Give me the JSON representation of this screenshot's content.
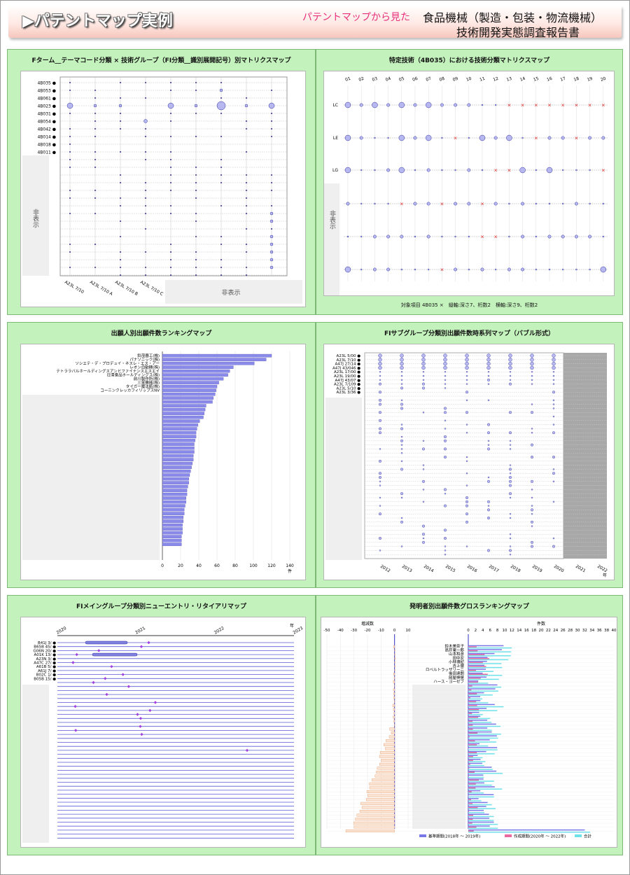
{
  "header": {
    "title": "パテントマップ実例",
    "subtitle": "パテントマップから見た",
    "report_line1": "食品機械（製造・包装・物流機械）",
    "report_line2": "技術開発実態調査報告書"
  },
  "colors": {
    "panel_bg": "#c4f2bd",
    "bubble": "#b8b8f0",
    "bubble_stroke": "#3030a0",
    "red_x": "#e02020",
    "bar": "#8a8aea",
    "pink": "#e86aa0",
    "cyan": "#6ee2e8",
    "orange": "#e8a070"
  },
  "panels": {
    "p1": {
      "title": "Fターム__テーマコード分類 × 技術グループ（FI分類__識別展開記号）別マトリクスマップ",
      "rows": [
        "4B035",
        "4B053",
        "4B061",
        "4B023",
        "4B031",
        "4B054",
        "4B042",
        "4B014",
        "4B018",
        "4B011"
      ],
      "hidden_label": "非表示",
      "xlabels": [
        "A23L 7/10",
        "A23L 7/10 A",
        "A23L 7/10 B",
        "A23L 7/10 C"
      ]
    },
    "p2": {
      "title": "特定技術（4B035）における技術分類マトリクスマップ",
      "cols": [
        "01",
        "02",
        "03",
        "04",
        "05",
        "06",
        "07",
        "08",
        "09",
        "10",
        "11",
        "12",
        "13",
        "14",
        "15",
        "16",
        "17",
        "18",
        "19",
        "20"
      ],
      "rows": [
        "LC",
        "LE",
        "LG"
      ],
      "hidden_label": "非表示",
      "footnote": "対象項目 4B035 ×　縦軸:深さ7、桁数2　横軸:深さ9、桁数2"
    },
    "p3": {
      "title": "出願人別出願件数ランキングマップ",
      "applicants": [
        "鈴茂器工(株)",
        "パナソニック(株)",
        "ソシエテ・デ・プロデュイ・ネスレ・エス・アー",
        "レオン自動機(株)",
        "テトララバルホールディングスアンドファイナンスエスエイ",
        "日清食品ホールディングス(株)",
        "前川製作所(株)",
        "三栄機械(株)",
        "タイガー魔法瓶(株)",
        "コーニンクレッカフィリップスNV"
      ],
      "values": [
        120,
        114,
        101,
        78,
        74,
        72,
        67,
        62,
        60,
        59,
        58,
        56,
        55,
        48,
        47,
        46,
        45,
        41,
        39,
        38,
        37,
        37,
        36,
        35,
        35,
        35,
        34,
        34,
        33,
        32,
        31,
        30,
        29,
        29,
        28,
        27,
        27,
        26,
        26,
        25,
        24,
        24,
        23,
        23,
        22,
        22,
        22,
        21,
        21,
        21
      ],
      "axis": [
        "0",
        "20",
        "40",
        "60",
        "80",
        "100",
        "120",
        "140"
      ],
      "unit": "件"
    },
    "p4": {
      "title": "FIサブグループ分類別出願件数時系列マップ（バブル形式）",
      "rows": [
        "A23L 5/00",
        "A23L 7/10",
        "A47J 27/14",
        "A47J 43/046",
        "A23L 17/00",
        "A23L 19/00",
        "A47J 43/07",
        "A23L 7/109",
        "A23L 5/10",
        "A23L 3/36"
      ],
      "years": [
        "2012",
        "2013",
        "2014",
        "2015",
        "2016",
        "2017",
        "2018",
        "2019",
        "2020",
        "2021",
        "2022"
      ],
      "unit": "年"
    },
    "p5": {
      "title": "FIメイングループ分類別ニューエントリ・リタイアリマップ",
      "years": [
        "2020",
        "2021",
        "2022",
        "2023"
      ],
      "unit": "年",
      "rows": [
        "B41J 3/",
        "B65B 45/",
        "G06N 20/",
        "A01K 13/",
        "A23N 3/",
        "A47C 27/",
        "A61B 5/",
        "A61J 7/",
        "B02C 1/",
        "B05B 15/"
      ]
    },
    "p6": {
      "title": "発明者別出願件数グロスランキングマップ",
      "left_label": "増減数",
      "left_axis": [
        "-50",
        "-40",
        "-30",
        "-20",
        "-10",
        "0",
        "10"
      ],
      "right_label": "件数",
      "right_axis": [
        "0",
        "2",
        "4",
        "6",
        "8",
        "10",
        "12",
        "14",
        "16",
        "18",
        "20",
        "22",
        "24",
        "26",
        "28",
        "30",
        "32",
        "34",
        "36",
        "38",
        "40"
      ],
      "inventors": [
        "鈴木美奈子",
        "高井東一郎",
        "山本和彦",
        "田中宏",
        "小林博紀",
        "吉上徹",
        "ロベルトラッザリーニ",
        "後田達朗",
        "岡屋伸晃",
        "ハース・ヨーゼフ"
      ],
      "legend": [
        "基準期間(2018年 ～ 2019年)",
        "作成期間(2020年 ～ 2022年)",
        "合計"
      ]
    }
  }
}
